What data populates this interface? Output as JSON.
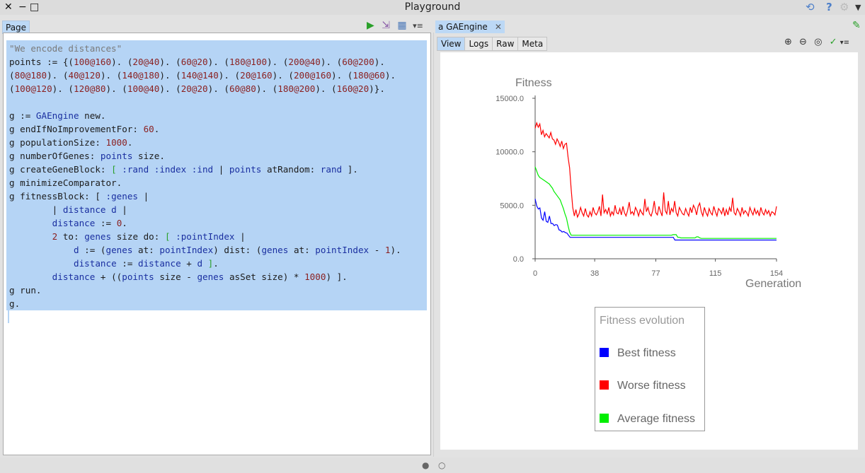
{
  "window": {
    "title": "Playground"
  },
  "left": {
    "tab_label": "Page",
    "code_lines": [
      [
        [
          "com",
          "\"We encode distances\""
        ]
      ],
      [
        [
          "pl",
          "points := {("
        ],
        [
          "num",
          "100@160"
        ],
        [
          "pl",
          "). ("
        ],
        [
          "num",
          "20@40"
        ],
        [
          "pl",
          "). ("
        ],
        [
          "num",
          "60@20"
        ],
        [
          "pl",
          "). ("
        ],
        [
          "num",
          "180@100"
        ],
        [
          "pl",
          "). ("
        ],
        [
          "num",
          "200@40"
        ],
        [
          "pl",
          "). ("
        ],
        [
          "num",
          "60@200"
        ],
        [
          "pl",
          ")."
        ]
      ],
      [
        [
          "pl",
          "("
        ],
        [
          "num",
          "80@180"
        ],
        [
          "pl",
          "). ("
        ],
        [
          "num",
          "40@120"
        ],
        [
          "pl",
          "). ("
        ],
        [
          "num",
          "140@180"
        ],
        [
          "pl",
          "). ("
        ],
        [
          "num",
          "140@140"
        ],
        [
          "pl",
          "). ("
        ],
        [
          "num",
          "20@160"
        ],
        [
          "pl",
          "). ("
        ],
        [
          "num",
          "200@160"
        ],
        [
          "pl",
          "). ("
        ],
        [
          "num",
          "180@60"
        ],
        [
          "pl",
          ")."
        ]
      ],
      [
        [
          "pl",
          "("
        ],
        [
          "num",
          "100@120"
        ],
        [
          "pl",
          "). ("
        ],
        [
          "num",
          "120@80"
        ],
        [
          "pl",
          "). ("
        ],
        [
          "num",
          "100@40"
        ],
        [
          "pl",
          "). ("
        ],
        [
          "num",
          "20@20"
        ],
        [
          "pl",
          "). ("
        ],
        [
          "num",
          "60@80"
        ],
        [
          "pl",
          "). ("
        ],
        [
          "num",
          "180@200"
        ],
        [
          "pl",
          "). ("
        ],
        [
          "num",
          "160@20"
        ],
        [
          "pl",
          ")}."
        ]
      ],
      [
        [
          "pl",
          ""
        ]
      ],
      [
        [
          "pl",
          "g := "
        ],
        [
          "kw",
          "GAEngine"
        ],
        [
          "pl",
          " new."
        ]
      ],
      [
        [
          "pl",
          "g endIfNoImprovementFor: "
        ],
        [
          "num",
          "60"
        ],
        [
          "pl",
          "."
        ]
      ],
      [
        [
          "pl",
          "g populationSize: "
        ],
        [
          "num",
          "1000"
        ],
        [
          "pl",
          "."
        ]
      ],
      [
        [
          "pl",
          "g numberOfGenes: "
        ],
        [
          "kw",
          "points"
        ],
        [
          "pl",
          " size."
        ]
      ],
      [
        [
          "pl",
          "g createGeneBlock: "
        ],
        [
          "blk",
          "["
        ],
        [
          "kw",
          " :rand :index :ind "
        ],
        [
          "pl",
          "| "
        ],
        [
          "kw",
          "points"
        ],
        [
          "pl",
          " atRandom: "
        ],
        [
          "kw",
          "rand"
        ],
        [
          "pl",
          " ]."
        ]
      ],
      [
        [
          "pl",
          "g minimizeComparator."
        ]
      ],
      [
        [
          "pl",
          "g fitnessBlock: [ "
        ],
        [
          "kw",
          ":genes"
        ],
        [
          "pl",
          " |"
        ]
      ],
      [
        [
          "pl",
          "        | "
        ],
        [
          "kw",
          "distance d"
        ],
        [
          "pl",
          " |"
        ]
      ],
      [
        [
          "pl",
          "        "
        ],
        [
          "kw",
          "distance"
        ],
        [
          "pl",
          " := "
        ],
        [
          "num",
          "0"
        ],
        [
          "pl",
          "."
        ]
      ],
      [
        [
          "pl",
          "        "
        ],
        [
          "num",
          "2"
        ],
        [
          "pl",
          " to: "
        ],
        [
          "kw",
          "genes"
        ],
        [
          "pl",
          " size do: "
        ],
        [
          "blk",
          "["
        ],
        [
          "kw",
          " :pointIndex"
        ],
        [
          "pl",
          " |"
        ]
      ],
      [
        [
          "pl",
          "            "
        ],
        [
          "kw",
          "d"
        ],
        [
          "pl",
          " := ("
        ],
        [
          "kw",
          "genes"
        ],
        [
          "pl",
          " at: "
        ],
        [
          "kw",
          "pointIndex"
        ],
        [
          "pl",
          ") dist: ("
        ],
        [
          "kw",
          "genes"
        ],
        [
          "pl",
          " at: "
        ],
        [
          "kw",
          "pointIndex"
        ],
        [
          "pl",
          " - "
        ],
        [
          "num",
          "1"
        ],
        [
          "pl",
          ")."
        ]
      ],
      [
        [
          "pl",
          "            "
        ],
        [
          "kw",
          "distance"
        ],
        [
          "pl",
          " := "
        ],
        [
          "kw",
          "distance"
        ],
        [
          "pl",
          " + "
        ],
        [
          "kw",
          "d"
        ],
        [
          "pl",
          " "
        ],
        [
          "blk",
          "]"
        ],
        [
          "pl",
          "."
        ]
      ],
      [
        [
          "pl",
          "        "
        ],
        [
          "kw",
          "distance"
        ],
        [
          "pl",
          " + (("
        ],
        [
          "kw",
          "points"
        ],
        [
          "pl",
          " size - "
        ],
        [
          "kw",
          "genes"
        ],
        [
          "pl",
          " asSet size) * "
        ],
        [
          "num",
          "1000"
        ],
        [
          "pl",
          ") ]."
        ]
      ],
      [
        [
          "pl",
          "g run."
        ]
      ],
      [
        [
          "pl",
          "g."
        ]
      ]
    ]
  },
  "right": {
    "tab_label": "a GAEngine",
    "view_tabs": [
      "View",
      "Logs",
      "Raw",
      "Meta"
    ],
    "active_view_tab": "View"
  },
  "chart_data": {
    "type": "line",
    "title": "",
    "xlabel": "Generation",
    "ylabel": "Fitness",
    "xlim": [
      0,
      154
    ],
    "ylim": [
      0,
      15000
    ],
    "x_ticks": [
      "0",
      "38",
      "77",
      "115",
      "154"
    ],
    "x_tick_values": [
      0,
      38,
      77,
      115,
      154
    ],
    "y_ticks": [
      "0.0",
      "5000.0",
      "10000.0",
      "15000.0"
    ],
    "y_tick_values": [
      0,
      5000,
      10000,
      15000
    ],
    "legend": {
      "title": "Fitness evolution",
      "position": "bottom"
    },
    "series": [
      {
        "name": "Best fitness",
        "color": "#0000ff",
        "values": [
          5600,
          4950,
          4650,
          4750,
          3800,
          3600,
          4400,
          3500,
          3400,
          4000,
          3300,
          3300,
          3100,
          3200,
          3150,
          2700,
          2650,
          2500,
          2550,
          2450,
          2400,
          2200,
          2000,
          2000,
          2000,
          2000,
          2000,
          2000,
          2000,
          2000,
          2000,
          2000,
          2000,
          2000,
          2000,
          2000,
          2000,
          2000,
          2000,
          2000,
          2000,
          2000,
          2000,
          2000,
          2000,
          2000,
          2000,
          2000,
          2000,
          2000,
          2000,
          2000,
          2000,
          2000,
          2000,
          2000,
          2000,
          2000,
          2000,
          2000,
          2000,
          2000,
          2000,
          2000,
          2000,
          2000,
          2000,
          2000,
          2000,
          2000,
          2000,
          2000,
          2000,
          2000,
          2000,
          2000,
          2000,
          2000,
          2000,
          2000,
          2000,
          2000,
          2000,
          2000,
          2000,
          2000,
          2000,
          2000,
          1750,
          1750,
          1750,
          1750,
          1750,
          1750,
          1750,
          1750,
          1750,
          1750,
          1750,
          1750,
          1750,
          1750,
          1750,
          1750,
          1750,
          1750,
          1750,
          1750,
          1750,
          1750,
          1750,
          1750,
          1750,
          1750,
          1750,
          1750,
          1750,
          1750,
          1750,
          1750,
          1750,
          1750,
          1750,
          1750,
          1750,
          1750,
          1750,
          1750,
          1750,
          1750,
          1750,
          1750,
          1750,
          1750,
          1750,
          1750,
          1750,
          1750,
          1750,
          1750,
          1750,
          1750,
          1750,
          1750,
          1750,
          1750,
          1750,
          1750,
          1750,
          1750,
          1750,
          1750,
          1750
        ]
      },
      {
        "name": "Worse fitness",
        "color": "#ff0000",
        "values": [
          12200,
          12700,
          12300,
          12600,
          11600,
          12000,
          11400,
          11700,
          11500,
          11300,
          11800,
          11200,
          11100,
          10700,
          11200,
          10900,
          10500,
          11000,
          10300,
          10700,
          10800,
          9500,
          8500,
          6500,
          4800,
          4000,
          4600,
          3900,
          4200,
          4800,
          4300,
          4000,
          4700,
          4100,
          3900,
          4400,
          4000,
          4800,
          4300,
          4100,
          4400,
          4900,
          4000,
          6000,
          4300,
          4600,
          4200,
          4800,
          4000,
          4400,
          4100,
          5000,
          4300,
          4200,
          4700,
          4100,
          4900,
          4300,
          4000,
          4500,
          5300,
          4200,
          4400,
          4100,
          4800,
          4500,
          4000,
          4600,
          4300,
          4100,
          5600,
          4400,
          4800,
          4200,
          4000,
          4500,
          5400,
          4300,
          4100,
          4900,
          4400,
          4000,
          6200,
          4500,
          4200,
          5400,
          4100,
          4700,
          4400,
          5400,
          4300,
          4000,
          4800,
          4500,
          4200,
          4100,
          4700,
          4300,
          4000,
          4800,
          4300,
          5000,
          4700,
          4100,
          4900,
          5200,
          4400,
          4000,
          4800,
          4300,
          4000,
          4700,
          4300,
          4100,
          4900,
          4400,
          4000,
          4700,
          4500,
          4200,
          4800,
          4000,
          4600,
          4100,
          4800,
          4400,
          5700,
          4300,
          4100,
          4700,
          4400,
          4000,
          4800,
          4200,
          4500,
          4300,
          4000,
          4800,
          4400,
          4100,
          4700,
          4200,
          4500,
          4000,
          4800,
          4300,
          4100,
          4600,
          4200,
          4500,
          4000,
          4400,
          4300,
          4100,
          4900
        ]
      },
      {
        "name": "Average fitness",
        "color": "#00ee00",
        "values": [
          8600,
          8200,
          7800,
          7600,
          7500,
          7400,
          7300,
          7200,
          7100,
          7000,
          6800,
          6600,
          6300,
          6100,
          5900,
          5700,
          5500,
          5100,
          4700,
          4200,
          3800,
          3100,
          2500,
          2200,
          2200,
          2200,
          2200,
          2200,
          2200,
          2200,
          2200,
          2200,
          2200,
          2200,
          2200,
          2200,
          2200,
          2200,
          2200,
          2200,
          2200,
          2200,
          2200,
          2200,
          2200,
          2200,
          2200,
          2200,
          2200,
          2200,
          2200,
          2200,
          2200,
          2200,
          2200,
          2200,
          2200,
          2200,
          2200,
          2200,
          2200,
          2200,
          2200,
          2200,
          2200,
          2200,
          2200,
          2200,
          2200,
          2200,
          2200,
          2200,
          2200,
          2200,
          2200,
          2200,
          2200,
          2200,
          2200,
          2200,
          2200,
          2200,
          2200,
          2200,
          2200,
          2200,
          2200,
          2200,
          2250,
          2250,
          2250,
          2000,
          2000,
          1950,
          1950,
          1950,
          1950,
          1950,
          1950,
          1950,
          1950,
          1950,
          1950,
          2050,
          2050,
          1950,
          1900,
          1900,
          1900,
          1900,
          1900,
          1900,
          1900,
          1900,
          1900,
          1900,
          1900,
          1900,
          1900,
          1900,
          1900,
          1900,
          1900,
          1900,
          1900,
          1900,
          1900,
          1900,
          1900,
          1900,
          1900,
          1900,
          1900,
          1900,
          1900,
          1900,
          1900,
          1900,
          1900,
          1900,
          1900,
          1900,
          1900,
          1900,
          1900,
          1900,
          1900,
          1900,
          1900,
          1900,
          1900,
          1900,
          1900,
          1900,
          1900
        ]
      }
    ]
  },
  "colors": {
    "selection": "#b5d4f5",
    "tab_active": "#bcd8f5"
  },
  "icons": {
    "run": "play-icon",
    "doit": "export-icon",
    "inspect": "inspector-icon",
    "menu": "menu-icon"
  }
}
